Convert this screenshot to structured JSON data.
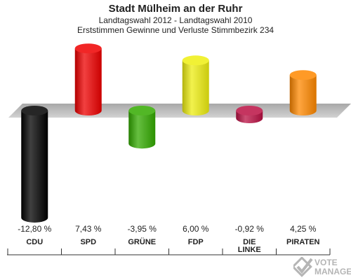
{
  "header": {
    "title": "Stadt Mülheim an der Ruhr",
    "subtitle1": "Landtagswahl 2012 - Landtagswahl 2010",
    "subtitle2": "Erststimmen Gewinne und Verluste Stimmbezirk 234"
  },
  "chart_data": {
    "type": "bar",
    "title": "Stadt Mülheim an der Ruhr",
    "subtitle": "Landtagswahl 2012 - Landtagswahl 2010 / Erststimmen Gewinne und Verluste Stimmbezirk 234",
    "categories": [
      "CDU",
      "SPD",
      "GRÜNE",
      "FDP",
      "DIE LINKE",
      "PIRATEN"
    ],
    "category_lines": [
      [
        "CDU"
      ],
      [
        "SPD"
      ],
      [
        "GRÜNE"
      ],
      [
        "FDP"
      ],
      [
        "DIE",
        "LINKE"
      ],
      [
        "PIRATEN"
      ]
    ],
    "values": [
      -12.8,
      7.43,
      -3.95,
      6.0,
      -0.92,
      4.25
    ],
    "value_labels": [
      "-12,80 %",
      "7,43 %",
      "-3,95 %",
      "6,00 %",
      "-0,92 %",
      "4,25 %"
    ],
    "colors": [
      "#000000",
      "#ee0000",
      "#33aa00",
      "#eeee11",
      "#bb1144",
      "#ff8800"
    ],
    "ylim": [
      -13,
      8
    ],
    "grid": false,
    "legend": "none"
  },
  "logo": {
    "line1": "VOTE",
    "line2": "MANAGER"
  }
}
